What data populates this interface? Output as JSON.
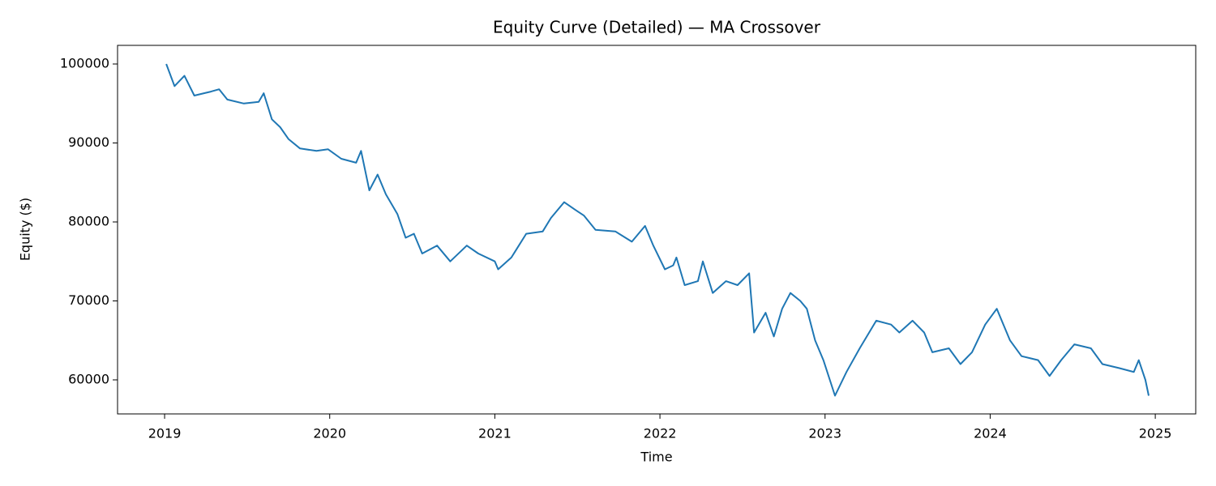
{
  "chart_data": {
    "type": "line",
    "title": "Equity Curve (Detailed) — MA Crossover",
    "x_label": "Time",
    "y_label": "Equity ($)",
    "color": "#1f77b4",
    "x": [
      2019.01,
      2019.06,
      2019.12,
      2019.18,
      2019.28,
      2019.33,
      2019.38,
      2019.48,
      2019.57,
      2019.6,
      2019.65,
      2019.7,
      2019.75,
      2019.82,
      2019.92,
      2019.99,
      2020.07,
      2020.16,
      2020.19,
      2020.24,
      2020.29,
      2020.34,
      2020.41,
      2020.46,
      2020.51,
      2020.56,
      2020.65,
      2020.73,
      2020.83,
      2020.9,
      2021.0,
      2021.02,
      2021.1,
      2021.19,
      2021.29,
      2021.34,
      2021.42,
      2021.49,
      2021.54,
      2021.61,
      2021.73,
      2021.83,
      2021.91,
      2021.96,
      2022.03,
      2022.08,
      2022.1,
      2022.15,
      2022.23,
      2022.26,
      2022.32,
      2022.4,
      2022.47,
      2022.54,
      2022.57,
      2022.64,
      2022.69,
      2022.74,
      2022.79,
      2022.85,
      2022.89,
      2022.94,
      2022.99,
      2023.06,
      2023.13,
      2023.21,
      2023.31,
      2023.4,
      2023.45,
      2023.53,
      2023.6,
      2023.65,
      2023.75,
      2023.82,
      2023.89,
      2023.97,
      2024.04,
      2024.12,
      2024.19,
      2024.29,
      2024.36,
      2024.43,
      2024.51,
      2024.61,
      2024.68,
      2024.78,
      2024.87,
      2024.9,
      2024.94,
      2024.96
    ],
    "values": [
      100000,
      97200,
      98500,
      96000,
      96500,
      96800,
      95500,
      95000,
      95200,
      96300,
      93000,
      92000,
      90500,
      89300,
      89000,
      89200,
      88000,
      87500,
      89000,
      84000,
      86000,
      83500,
      81000,
      78000,
      78500,
      76000,
      77000,
      75000,
      77000,
      76000,
      75000,
      74000,
      75500,
      78500,
      78800,
      80500,
      82500,
      81500,
      80800,
      79000,
      78800,
      77500,
      79500,
      77000,
      74000,
      74500,
      75500,
      72000,
      72500,
      75000,
      71000,
      72500,
      72000,
      73500,
      66000,
      68500,
      65500,
      69000,
      71000,
      70000,
      69000,
      65000,
      62500,
      58000,
      61000,
      64000,
      67500,
      67000,
      66000,
      67500,
      66000,
      63500,
      64000,
      62000,
      63500,
      67000,
      69000,
      65000,
      63000,
      62500,
      60500,
      62500,
      64500,
      64000,
      62000,
      61500,
      61000,
      62500,
      60000,
      58000
    ],
    "xlim": [
      2018.715,
      2025.245
    ],
    "xticks": [
      2019,
      2020,
      2021,
      2022,
      2023,
      2024,
      2025
    ],
    "ylim": [
      55690,
      102360
    ],
    "yticks": [
      60000,
      70000,
      80000,
      90000,
      100000
    ]
  }
}
